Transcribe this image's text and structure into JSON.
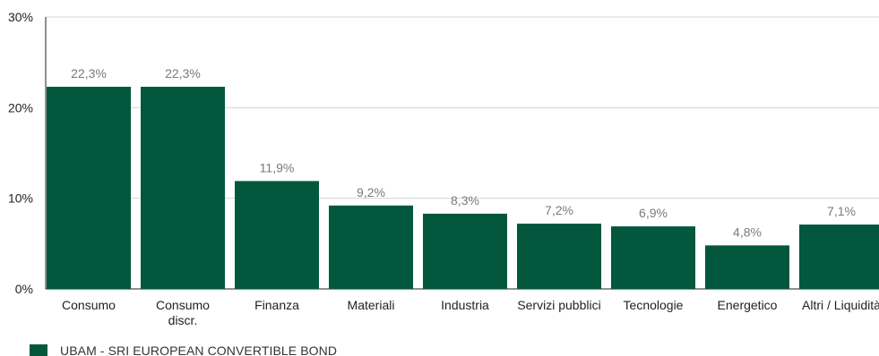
{
  "chart_data": {
    "type": "bar",
    "categories": [
      "Consumo",
      "Consumo discr.",
      "Finanza",
      "Materiali",
      "Industria",
      "Servizi pubblici",
      "Tecnologie",
      "Energetico",
      "Altri / Liquidità"
    ],
    "category_lines": [
      [
        "Consumo"
      ],
      [
        "Consumo",
        "discr."
      ],
      [
        "Finanza"
      ],
      [
        "Materiali"
      ],
      [
        "Industria"
      ],
      [
        "Servizi pubblici"
      ],
      [
        "Tecnologie"
      ],
      [
        "Energetico"
      ],
      [
        "Altri / Liquidità"
      ]
    ],
    "values": [
      22.3,
      22.3,
      11.9,
      9.2,
      8.3,
      7.2,
      6.9,
      4.8,
      7.1
    ],
    "data_labels": [
      "22,3%",
      "22,3%",
      "11,9%",
      "9,2%",
      "8,3%",
      "7,2%",
      "6,9%",
      "4,8%",
      "7,1%"
    ],
    "yticks": [
      0,
      10,
      20,
      30
    ],
    "ytick_labels": [
      "0%",
      "10%",
      "20%",
      "30%"
    ],
    "ylim": [
      0,
      30
    ],
    "grid": true,
    "legend": {
      "position": "bottom-left",
      "label": "UBAM - SRI EUROPEAN CONVERTIBLE BOND"
    },
    "colors": {
      "bar": "#02573d",
      "grid": "#d4d4d4",
      "axis": "#222222"
    }
  }
}
